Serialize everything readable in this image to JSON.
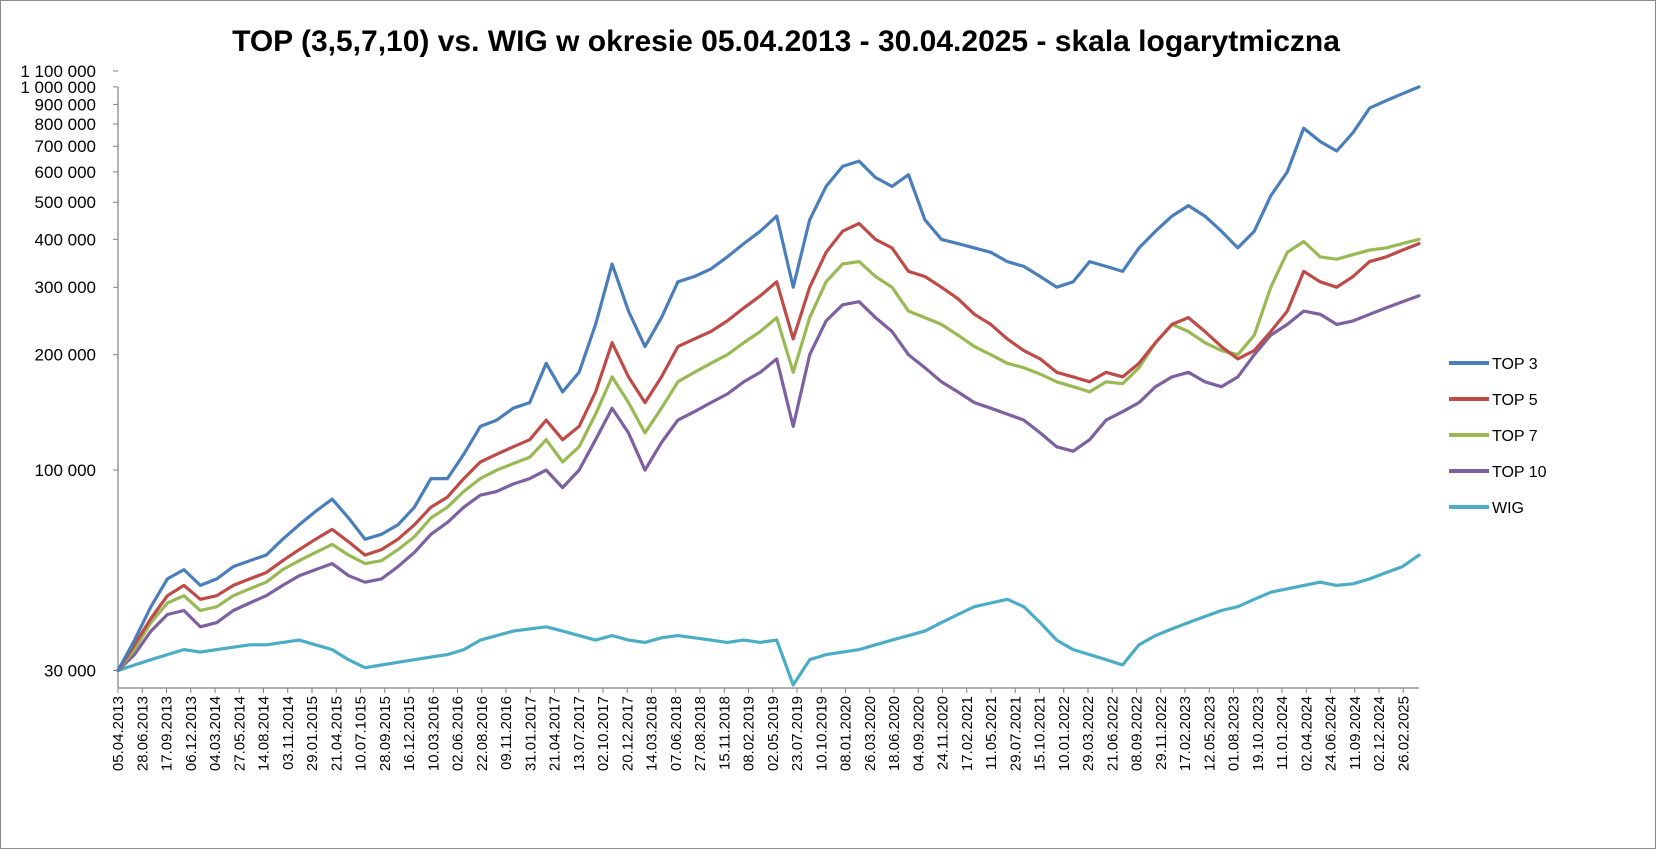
{
  "chart_data": {
    "type": "line",
    "title": "TOP (3,5,7,10) vs. WIG w okresie 05.04.2013 - 30.04.2025 - skala logarytmiczna",
    "xlabel": "",
    "ylabel": "",
    "y_scale": "log",
    "ylim": [
      27000,
      1100000
    ],
    "y_ticks": [
      {
        "value": 30000,
        "label": "30 000"
      },
      {
        "value": 100000,
        "label": "100 000"
      },
      {
        "value": 200000,
        "label": "200 000"
      },
      {
        "value": 300000,
        "label": "300 000"
      },
      {
        "value": 400000,
        "label": "400 000"
      },
      {
        "value": 500000,
        "label": "500 000"
      },
      {
        "value": 600000,
        "label": "600 000"
      },
      {
        "value": 700000,
        "label": "700 000"
      },
      {
        "value": 800000,
        "label": "800 000"
      },
      {
        "value": 900000,
        "label": "900 000"
      },
      {
        "value": 1000000,
        "label": "1 000 000"
      },
      {
        "value": 1100000,
        "label": "1 100 000"
      }
    ],
    "x_tick_labels": [
      "05.04.2013",
      "28.06.2013",
      "17.09.2013",
      "06.12.2013",
      "04.03.2014",
      "27.05.2014",
      "14.08.2014",
      "03.11.2014",
      "29.01.2015",
      "21.04.2015",
      "10.07.1015",
      "28.09.2015",
      "16.12.2015",
      "10.03.2016",
      "02.06.2016",
      "22.08.2016",
      "09.11.2016",
      "31.01.2017",
      "21.04.2017",
      "13.07.2017",
      "02.10.2017",
      "20.12.2017",
      "14.03.2018",
      "07.06.2018",
      "27.08.2018",
      "15.11.2018",
      "08.02.2019",
      "02.05.2019",
      "23.07.2019",
      "10.10.2019",
      "08.01.2020",
      "26.03.2020",
      "18.06.2020",
      "04.09.2020",
      "24.11.2020",
      "17.02.2021",
      "11.05.2021",
      "29.07.2021",
      "15.10.2021",
      "10.01.2022",
      "29.03.2022",
      "21.06.2022",
      "08.09.2022",
      "29.11.2022",
      "17.02.2023",
      "12.05.2023",
      "01.08.2023",
      "19.10.2023",
      "11.01.2024",
      "02.04.2024",
      "24.06.2024",
      "11.09.2024",
      "02.12.2024",
      "26.02.2025"
    ],
    "grid": false,
    "legend_position": "right",
    "series": [
      {
        "name": "TOP 3",
        "color": "#4a7ebb",
        "values": [
          30000,
          36000,
          44000,
          52000,
          55000,
          50000,
          52000,
          56000,
          58000,
          60000,
          66000,
          72000,
          78000,
          84000,
          75000,
          66000,
          68000,
          72000,
          80000,
          95000,
          95000,
          110000,
          130000,
          135000,
          145000,
          150000,
          190000,
          160000,
          180000,
          240000,
          345000,
          260000,
          210000,
          250000,
          310000,
          320000,
          335000,
          360000,
          390000,
          420000,
          460000,
          300000,
          450000,
          550000,
          620000,
          640000,
          580000,
          550000,
          590000,
          450000,
          400000,
          390000,
          380000,
          370000,
          350000,
          340000,
          320000,
          300000,
          310000,
          350000,
          340000,
          330000,
          380000,
          420000,
          460000,
          490000,
          460000,
          420000,
          380000,
          420000,
          520000,
          600000,
          780000,
          720000,
          680000,
          760000,
          880000,
          920000,
          960000,
          1000000
        ]
      },
      {
        "name": "TOP 5",
        "color": "#be4b48",
        "values": [
          30000,
          35000,
          41000,
          47000,
          50000,
          46000,
          47000,
          50000,
          52000,
          54000,
          58000,
          62000,
          66000,
          70000,
          65000,
          60000,
          62000,
          66000,
          72000,
          80000,
          85000,
          95000,
          105000,
          110000,
          115000,
          120000,
          135000,
          120000,
          130000,
          160000,
          215000,
          175000,
          150000,
          175000,
          210000,
          220000,
          230000,
          245000,
          265000,
          285000,
          310000,
          220000,
          300000,
          370000,
          420000,
          440000,
          400000,
          380000,
          330000,
          320000,
          300000,
          280000,
          255000,
          240000,
          220000,
          205000,
          195000,
          180000,
          175000,
          170000,
          180000,
          175000,
          190000,
          215000,
          240000,
          250000,
          230000,
          210000,
          195000,
          205000,
          230000,
          260000,
          330000,
          310000,
          300000,
          320000,
          350000,
          360000,
          375000,
          390000
        ]
      },
      {
        "name": "TOP 7",
        "color": "#98b954",
        "values": [
          30000,
          34000,
          40000,
          45000,
          47000,
          43000,
          44000,
          47000,
          49000,
          51000,
          55000,
          58000,
          61000,
          64000,
          60000,
          57000,
          58000,
          62000,
          67000,
          75000,
          80000,
          88000,
          95000,
          100000,
          104000,
          108000,
          120000,
          105000,
          115000,
          140000,
          175000,
          150000,
          125000,
          145000,
          170000,
          180000,
          190000,
          200000,
          215000,
          230000,
          250000,
          180000,
          250000,
          310000,
          345000,
          350000,
          320000,
          300000,
          260000,
          250000,
          240000,
          225000,
          210000,
          200000,
          190000,
          185000,
          178000,
          170000,
          165000,
          160000,
          170000,
          168000,
          185000,
          215000,
          240000,
          230000,
          215000,
          205000,
          200000,
          225000,
          300000,
          370000,
          395000,
          360000,
          355000,
          365000,
          375000,
          380000,
          390000,
          400000
        ]
      },
      {
        "name": "TOP 10",
        "color": "#7d60a0",
        "values": [
          30000,
          33000,
          38000,
          42000,
          43000,
          39000,
          40000,
          43000,
          45000,
          47000,
          50000,
          53000,
          55000,
          57000,
          53000,
          51000,
          52000,
          56000,
          61000,
          68000,
          73000,
          80000,
          86000,
          88000,
          92000,
          95000,
          100000,
          90000,
          100000,
          120000,
          145000,
          125000,
          100000,
          118000,
          135000,
          142000,
          150000,
          158000,
          170000,
          180000,
          195000,
          130000,
          200000,
          245000,
          270000,
          275000,
          250000,
          230000,
          200000,
          185000,
          170000,
          160000,
          150000,
          145000,
          140000,
          135000,
          125000,
          115000,
          112000,
          120000,
          135000,
          142000,
          150000,
          165000,
          175000,
          180000,
          170000,
          165000,
          175000,
          200000,
          225000,
          240000,
          260000,
          255000,
          240000,
          245000,
          255000,
          265000,
          275000,
          285000
        ]
      },
      {
        "name": "WIG",
        "color": "#4bacc6",
        "values": [
          30000,
          31000,
          32000,
          33000,
          34000,
          33500,
          34000,
          34500,
          35000,
          35000,
          35500,
          36000,
          35000,
          34000,
          32000,
          30500,
          31000,
          31500,
          32000,
          32500,
          33000,
          34000,
          36000,
          37000,
          38000,
          38500,
          39000,
          38000,
          37000,
          36000,
          37000,
          36000,
          35500,
          36500,
          37000,
          36500,
          36000,
          35500,
          36000,
          35500,
          36000,
          27500,
          32000,
          33000,
          33500,
          34000,
          35000,
          36000,
          37000,
          38000,
          40000,
          42000,
          44000,
          45000,
          46000,
          44000,
          40000,
          36000,
          34000,
          33000,
          32000,
          31000,
          35000,
          37000,
          38500,
          40000,
          41500,
          43000,
          44000,
          46000,
          48000,
          49000,
          50000,
          51000,
          50000,
          50500,
          52000,
          54000,
          56000,
          60000
        ]
      }
    ]
  }
}
